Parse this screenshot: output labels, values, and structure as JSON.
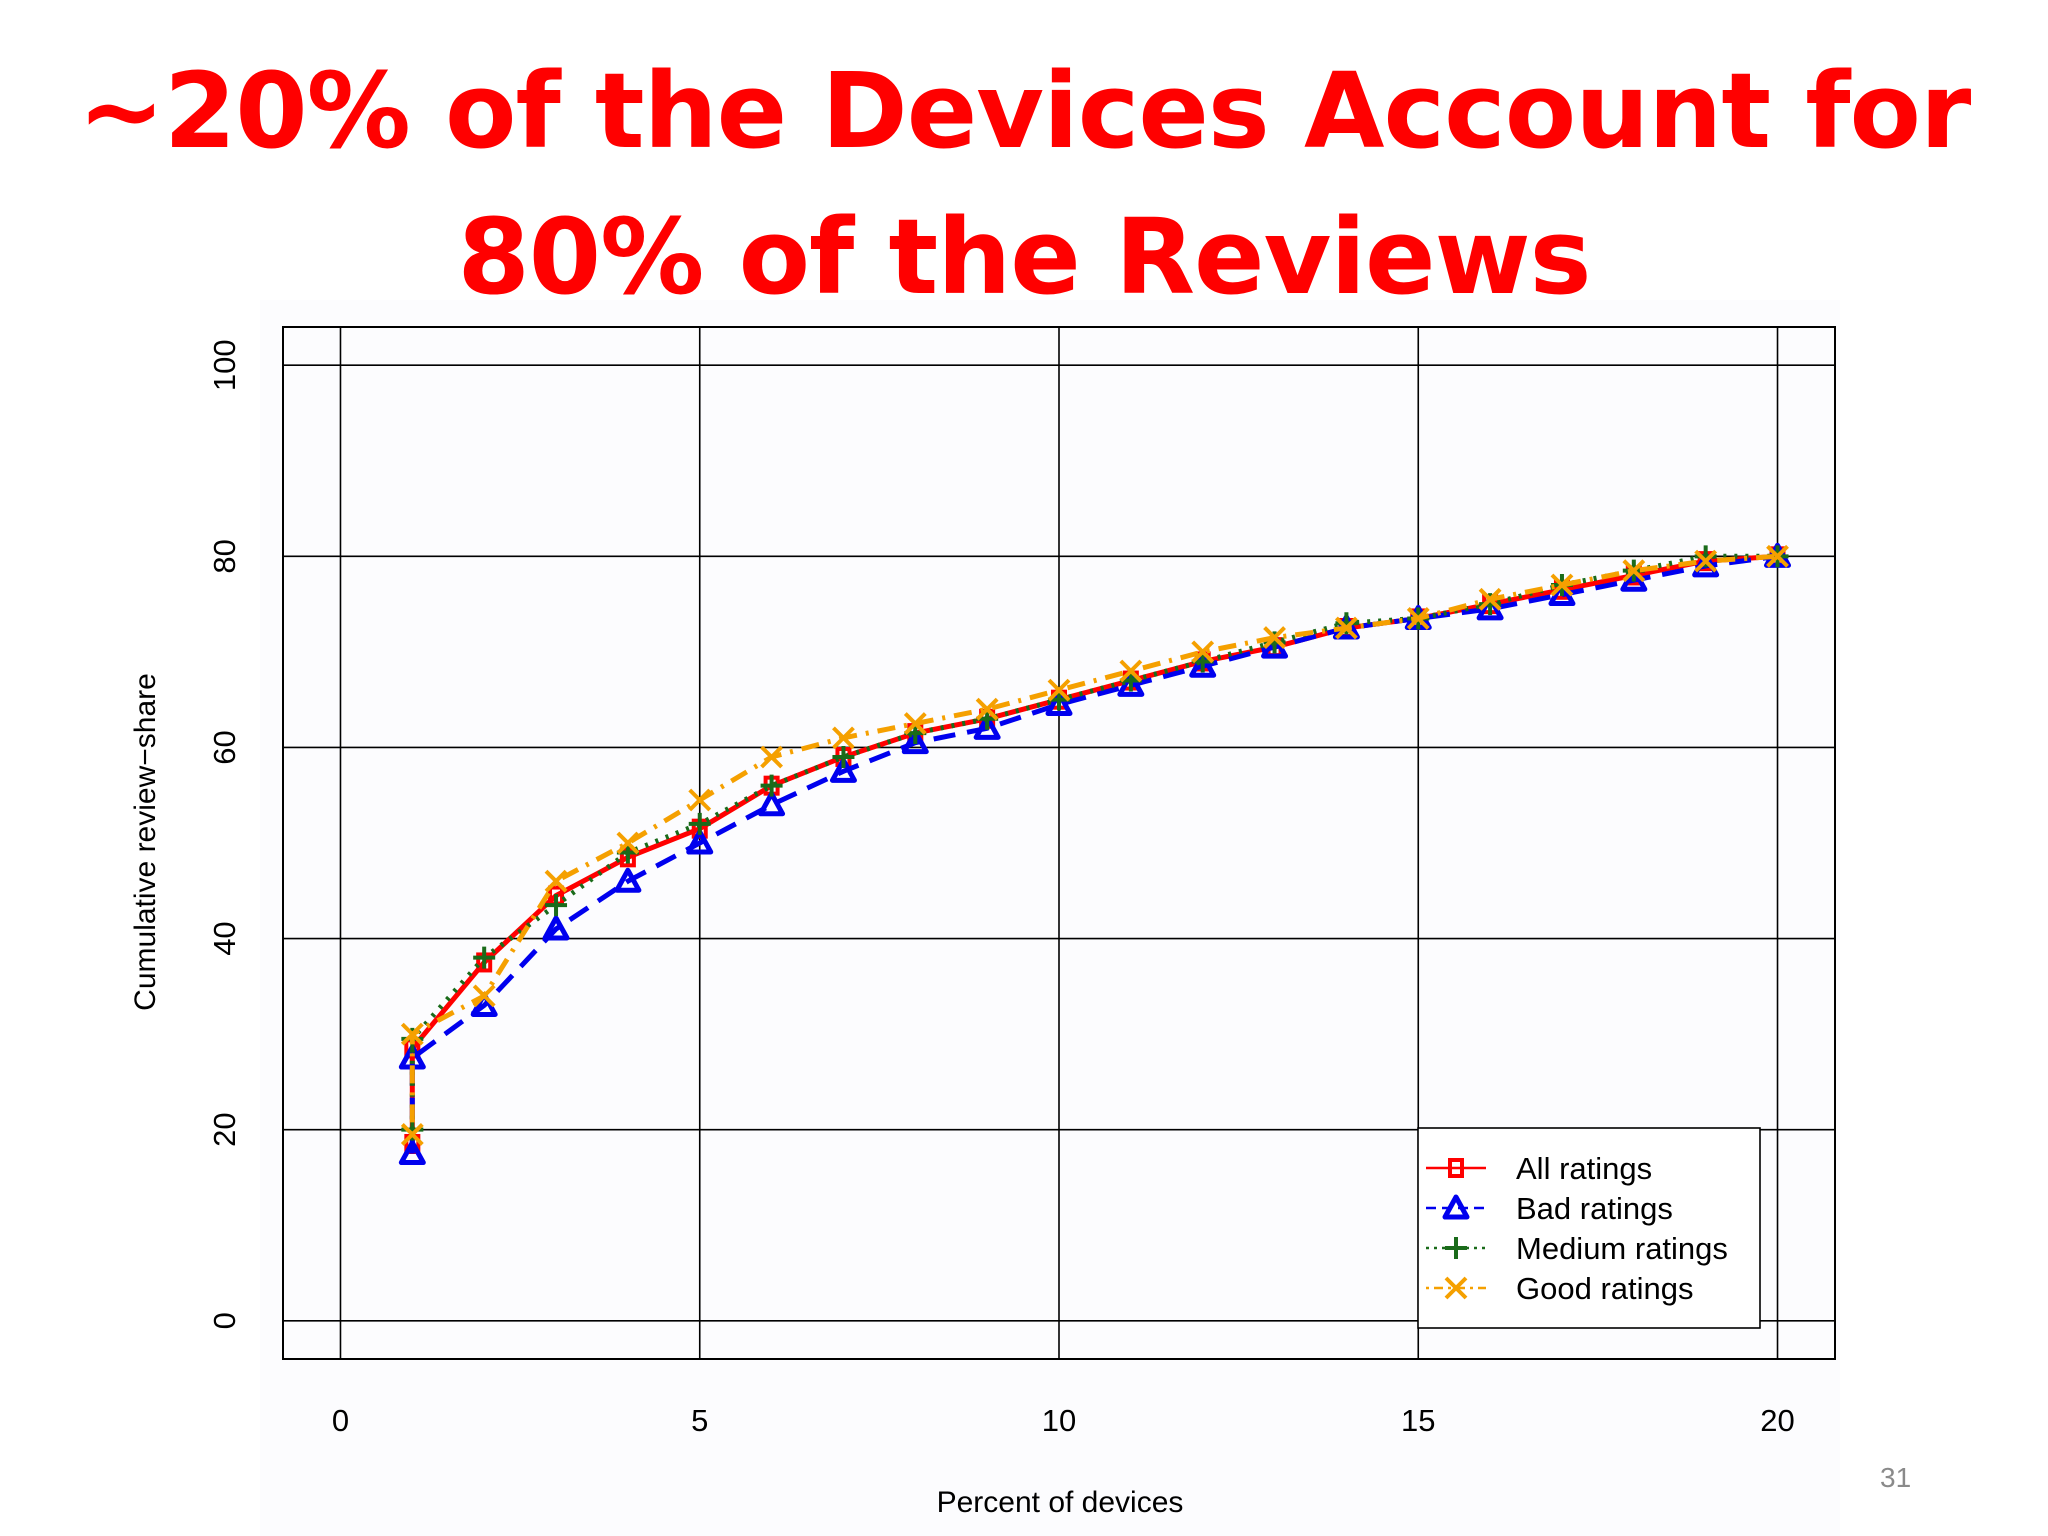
{
  "slide": {
    "title_line1": "~20% of the Devices Account for",
    "title_line2": "80% of the Reviews",
    "page_number": "31"
  },
  "chart_data": {
    "type": "line",
    "xlabel": "Percent of devices",
    "ylabel": "Cumulative review−share",
    "xlim": [
      -0.8,
      20.8
    ],
    "ylim": [
      -4,
      104
    ],
    "x_ticks": [
      "0",
      "5",
      "10",
      "15",
      "20"
    ],
    "y_ticks": [
      "0",
      "20",
      "40",
      "60",
      "80",
      "100"
    ],
    "grid": true,
    "legend_position": "bottom-right",
    "x": [
      1,
      2,
      3,
      4,
      5,
      6,
      7,
      8,
      9,
      10,
      11,
      12,
      13,
      14,
      15,
      16,
      17,
      18,
      19,
      20
    ],
    "series": [
      {
        "name": "All ratings",
        "color": "#ff0000",
        "dash": "solid",
        "marker": "square",
        "start_y": 18.5,
        "values": [
          28.5,
          37.5,
          44.5,
          48.5,
          51.5,
          56,
          59,
          61.5,
          63,
          65,
          67,
          69,
          70.5,
          72.5,
          73.5,
          75,
          76.5,
          78,
          79.5,
          80
        ]
      },
      {
        "name": "Bad ratings",
        "color": "#0000ee",
        "dash": "dashed",
        "marker": "triangle",
        "start_y": 17.5,
        "values": [
          27.5,
          33,
          41,
          46,
          50,
          54,
          57.5,
          60.5,
          62,
          64.5,
          66.5,
          68.5,
          70.5,
          72.5,
          73.5,
          74.5,
          76,
          77.5,
          79,
          80
        ]
      },
      {
        "name": "Medium ratings",
        "color": "#1a6b1a",
        "dash": "dotted",
        "marker": "plus",
        "start_y": 20,
        "values": [
          29.5,
          38,
          43.5,
          49,
          52,
          56,
          59,
          61.5,
          63,
          65,
          67,
          69,
          71,
          73,
          73.5,
          75,
          77,
          78.5,
          80,
          80
        ]
      },
      {
        "name": "Good ratings",
        "color": "#f5a000",
        "dash": "dotdash",
        "marker": "cross",
        "start_y": 19.5,
        "values": [
          30,
          34,
          46,
          50,
          54.5,
          59,
          61,
          62.5,
          64,
          66,
          68,
          70,
          71.5,
          72.5,
          73.5,
          75.5,
          77,
          78.5,
          79.5,
          80
        ]
      }
    ]
  }
}
